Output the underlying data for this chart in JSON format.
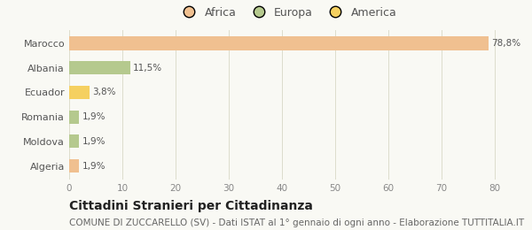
{
  "categories": [
    "Marocco",
    "Albania",
    "Ecuador",
    "Romania",
    "Moldova",
    "Algeria"
  ],
  "values": [
    78.8,
    11.5,
    3.8,
    1.9,
    1.9,
    1.9
  ],
  "labels": [
    "78,8%",
    "11,5%",
    "3,8%",
    "1,9%",
    "1,9%",
    "1,9%"
  ],
  "bar_colors": [
    "#f0c090",
    "#b5c98e",
    "#f5d060",
    "#b5c98e",
    "#b5c98e",
    "#f0c090"
  ],
  "legend_items": [
    {
      "label": "Africa",
      "color": "#f0c090"
    },
    {
      "label": "Europa",
      "color": "#b5c98e"
    },
    {
      "label": "America",
      "color": "#f5d060"
    }
  ],
  "xlim": [
    0,
    82
  ],
  "xticks": [
    0,
    10,
    20,
    30,
    40,
    50,
    60,
    70,
    80
  ],
  "background_color": "#f9f9f4",
  "title": "Cittadini Stranieri per Cittadinanza",
  "subtitle": "COMUNE DI ZUCCARELLO (SV) - Dati ISTAT al 1° gennaio di ogni anno - Elaborazione TUTTITALIA.IT",
  "title_fontsize": 10,
  "subtitle_fontsize": 7.5,
  "bar_height": 0.55
}
